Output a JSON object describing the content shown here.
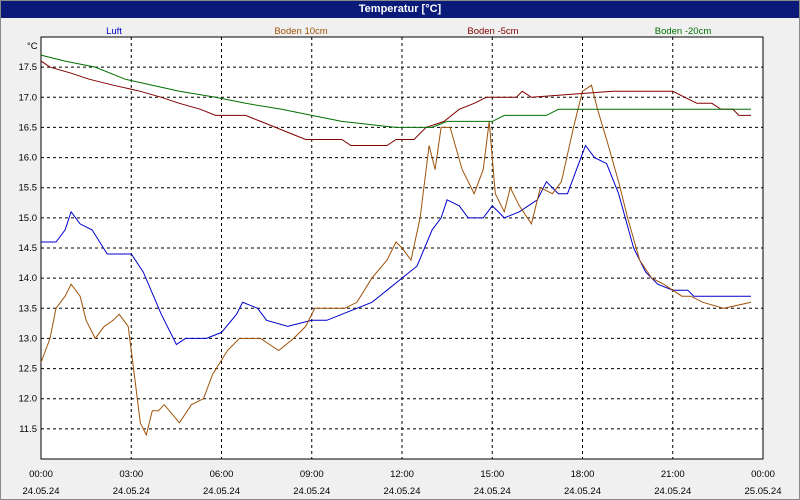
{
  "window": {
    "title": "Temperatur [°C]"
  },
  "chart_data": {
    "type": "line",
    "title": "Temperatur [°C]",
    "ylabel": "°C",
    "ylim": [
      11.0,
      18.0
    ],
    "yticks": [
      "11.5",
      "12.0",
      "12.5",
      "13.0",
      "13.5",
      "14.0",
      "14.5",
      "15.0",
      "15.5",
      "16.0",
      "16.5",
      "17.0",
      "17.5"
    ],
    "xlim_hours": [
      0,
      24
    ],
    "xticks": [
      {
        "time": "00:00",
        "date": "24.05.24"
      },
      {
        "time": "03:00",
        "date": "24.05.24"
      },
      {
        "time": "06:00",
        "date": "24.05.24"
      },
      {
        "time": "09:00",
        "date": "24.05.24"
      },
      {
        "time": "12:00",
        "date": "24.05.24"
      },
      {
        "time": "15:00",
        "date": "24.05.24"
      },
      {
        "time": "18:00",
        "date": "24.05.24"
      },
      {
        "time": "21:00",
        "date": "24.05.24"
      },
      {
        "time": "00:00",
        "date": "25.05.24"
      }
    ],
    "grid": true,
    "legend": "top",
    "series": [
      {
        "name": "Luft",
        "color": "#0000cc",
        "points": [
          [
            0,
            14.6
          ],
          [
            0.5,
            14.6
          ],
          [
            0.8,
            14.8
          ],
          [
            1.0,
            15.1
          ],
          [
            1.3,
            14.9
          ],
          [
            1.7,
            14.8
          ],
          [
            2.2,
            14.4
          ],
          [
            3.0,
            14.4
          ],
          [
            3.4,
            14.1
          ],
          [
            4.0,
            13.4
          ],
          [
            4.5,
            12.9
          ],
          [
            4.8,
            13.0
          ],
          [
            5.5,
            13.0
          ],
          [
            6.0,
            13.1
          ],
          [
            6.5,
            13.4
          ],
          [
            6.7,
            13.6
          ],
          [
            7.2,
            13.5
          ],
          [
            7.5,
            13.3
          ],
          [
            8.2,
            13.2
          ],
          [
            9.0,
            13.3
          ],
          [
            9.5,
            13.3
          ],
          [
            10.0,
            13.4
          ],
          [
            10.5,
            13.5
          ],
          [
            11.0,
            13.6
          ],
          [
            11.5,
            13.8
          ],
          [
            12.0,
            14.0
          ],
          [
            12.5,
            14.2
          ],
          [
            13.0,
            14.8
          ],
          [
            13.3,
            15.0
          ],
          [
            13.5,
            15.3
          ],
          [
            13.9,
            15.2
          ],
          [
            14.2,
            15.0
          ],
          [
            14.7,
            15.0
          ],
          [
            15.0,
            15.2
          ],
          [
            15.4,
            15.0
          ],
          [
            15.9,
            15.1
          ],
          [
            16.5,
            15.3
          ],
          [
            16.8,
            15.6
          ],
          [
            17.2,
            15.4
          ],
          [
            17.5,
            15.4
          ],
          [
            17.8,
            15.8
          ],
          [
            18.1,
            16.2
          ],
          [
            18.4,
            16.0
          ],
          [
            18.8,
            15.9
          ],
          [
            19.2,
            15.4
          ],
          [
            19.7,
            14.5
          ],
          [
            20.1,
            14.1
          ],
          [
            20.5,
            13.9
          ],
          [
            21.0,
            13.8
          ],
          [
            21.5,
            13.8
          ],
          [
            21.7,
            13.7
          ],
          [
            22.5,
            13.7
          ],
          [
            23.6,
            13.7
          ]
        ]
      },
      {
        "name": "Boden 10cm",
        "color": "#a0520a",
        "points": [
          [
            0,
            12.6
          ],
          [
            0.3,
            13.0
          ],
          [
            0.5,
            13.5
          ],
          [
            0.8,
            13.7
          ],
          [
            1.0,
            13.9
          ],
          [
            1.3,
            13.7
          ],
          [
            1.5,
            13.3
          ],
          [
            1.8,
            13.0
          ],
          [
            2.1,
            13.2
          ],
          [
            2.4,
            13.3
          ],
          [
            2.6,
            13.4
          ],
          [
            2.9,
            13.2
          ],
          [
            3.1,
            12.4
          ],
          [
            3.3,
            11.6
          ],
          [
            3.5,
            11.4
          ],
          [
            3.7,
            11.8
          ],
          [
            3.9,
            11.8
          ],
          [
            4.1,
            11.9
          ],
          [
            4.6,
            11.6
          ],
          [
            5.0,
            11.9
          ],
          [
            5.4,
            12.0
          ],
          [
            5.7,
            12.4
          ],
          [
            6.2,
            12.8
          ],
          [
            6.6,
            13.0
          ],
          [
            7.3,
            13.0
          ],
          [
            7.6,
            12.9
          ],
          [
            7.9,
            12.8
          ],
          [
            8.4,
            13.0
          ],
          [
            8.8,
            13.2
          ],
          [
            9.1,
            13.5
          ],
          [
            9.5,
            13.5
          ],
          [
            9.8,
            13.5
          ],
          [
            10.1,
            13.5
          ],
          [
            10.5,
            13.6
          ],
          [
            11.0,
            14.0
          ],
          [
            11.5,
            14.3
          ],
          [
            11.8,
            14.6
          ],
          [
            12.0,
            14.5
          ],
          [
            12.3,
            14.3
          ],
          [
            12.6,
            15.0
          ],
          [
            12.9,
            16.2
          ],
          [
            13.1,
            15.8
          ],
          [
            13.3,
            16.5
          ],
          [
            13.6,
            16.5
          ],
          [
            14.0,
            15.8
          ],
          [
            14.4,
            15.4
          ],
          [
            14.7,
            15.8
          ],
          [
            14.9,
            16.6
          ],
          [
            15.1,
            15.4
          ],
          [
            15.4,
            15.1
          ],
          [
            15.6,
            15.5
          ],
          [
            15.9,
            15.2
          ],
          [
            16.3,
            14.9
          ],
          [
            16.6,
            15.5
          ],
          [
            17.0,
            15.4
          ],
          [
            17.3,
            15.6
          ],
          [
            17.7,
            16.5
          ],
          [
            18.0,
            17.1
          ],
          [
            18.3,
            17.2
          ],
          [
            18.5,
            16.8
          ],
          [
            18.8,
            16.3
          ],
          [
            19.2,
            15.6
          ],
          [
            19.5,
            15.0
          ],
          [
            19.9,
            14.3
          ],
          [
            20.3,
            14.0
          ],
          [
            20.7,
            13.9
          ],
          [
            21.0,
            13.8
          ],
          [
            21.3,
            13.7
          ],
          [
            21.6,
            13.7
          ],
          [
            22.0,
            13.6
          ],
          [
            22.7,
            13.5
          ],
          [
            23.6,
            13.6
          ]
        ]
      },
      {
        "name": "Boden -5cm",
        "color": "#800000",
        "points": [
          [
            0,
            17.6
          ],
          [
            0.3,
            17.5
          ],
          [
            1.0,
            17.4
          ],
          [
            1.6,
            17.3
          ],
          [
            2.4,
            17.2
          ],
          [
            3.3,
            17.1
          ],
          [
            4.0,
            17.0
          ],
          [
            4.6,
            16.9
          ],
          [
            5.3,
            16.8
          ],
          [
            5.8,
            16.7
          ],
          [
            6.8,
            16.7
          ],
          [
            7.3,
            16.6
          ],
          [
            7.8,
            16.5
          ],
          [
            8.3,
            16.4
          ],
          [
            8.8,
            16.3
          ],
          [
            10.0,
            16.3
          ],
          [
            10.3,
            16.2
          ],
          [
            11.5,
            16.2
          ],
          [
            11.8,
            16.3
          ],
          [
            12.4,
            16.3
          ],
          [
            12.8,
            16.5
          ],
          [
            13.4,
            16.6
          ],
          [
            13.9,
            16.8
          ],
          [
            14.4,
            16.9
          ],
          [
            14.8,
            17.0
          ],
          [
            15.8,
            17.0
          ],
          [
            16.0,
            17.1
          ],
          [
            16.3,
            17.0
          ],
          [
            19.0,
            17.1
          ],
          [
            21.0,
            17.1
          ],
          [
            21.4,
            17.0
          ],
          [
            21.8,
            16.9
          ],
          [
            22.3,
            16.9
          ],
          [
            22.6,
            16.8
          ],
          [
            23.0,
            16.8
          ],
          [
            23.2,
            16.7
          ],
          [
            23.6,
            16.7
          ]
        ]
      },
      {
        "name": "Boden -20cm",
        "color": "#007000",
        "points": [
          [
            0,
            17.7
          ],
          [
            0.8,
            17.6
          ],
          [
            1.8,
            17.5
          ],
          [
            2.8,
            17.3
          ],
          [
            3.7,
            17.2
          ],
          [
            4.6,
            17.1
          ],
          [
            5.8,
            17.0
          ],
          [
            6.8,
            16.9
          ],
          [
            8.0,
            16.8
          ],
          [
            9.0,
            16.7
          ],
          [
            10.0,
            16.6
          ],
          [
            11.8,
            16.5
          ],
          [
            13.0,
            16.5
          ],
          [
            13.5,
            16.6
          ],
          [
            15.0,
            16.6
          ],
          [
            15.4,
            16.7
          ],
          [
            16.8,
            16.7
          ],
          [
            17.2,
            16.8
          ],
          [
            21.0,
            16.8
          ],
          [
            23.6,
            16.8
          ]
        ]
      }
    ]
  }
}
